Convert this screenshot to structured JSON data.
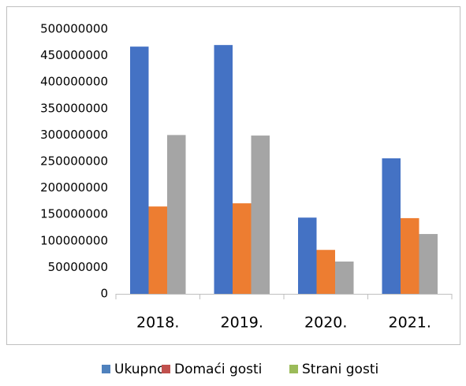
{
  "chart_data": {
    "type": "bar",
    "categories": [
      "2018.",
      "2019.",
      "2020.",
      "2021."
    ],
    "series": [
      {
        "name": "Ukupno",
        "color": "#4472c4",
        "legend_color": "#4f81bd",
        "values": [
          467000000,
          470000000,
          144000000,
          256000000
        ]
      },
      {
        "name": "Domaći gosti",
        "color": "#ed7d31",
        "legend_color": "#c0504d",
        "values": [
          165000000,
          171000000,
          83000000,
          143000000
        ]
      },
      {
        "name": "Strani gosti",
        "color": "#a5a5a5",
        "legend_color": "#9bbb59",
        "values": [
          300000000,
          299000000,
          61000000,
          113000000
        ]
      }
    ],
    "ylim": [
      0,
      500000000
    ],
    "yticks": [
      0,
      50000000,
      100000000,
      150000000,
      200000000,
      250000000,
      300000000,
      350000000,
      400000000,
      450000000,
      500000000
    ],
    "grid": false,
    "legend": "bottom"
  }
}
